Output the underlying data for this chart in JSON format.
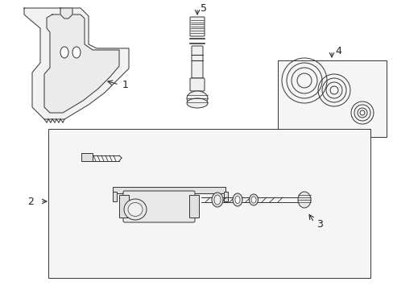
{
  "bg_color": "#ffffff",
  "line_color": "#333333",
  "fill_color": "#f8f8f8",
  "fig_width": 4.89,
  "fig_height": 3.6,
  "dpi": 100
}
